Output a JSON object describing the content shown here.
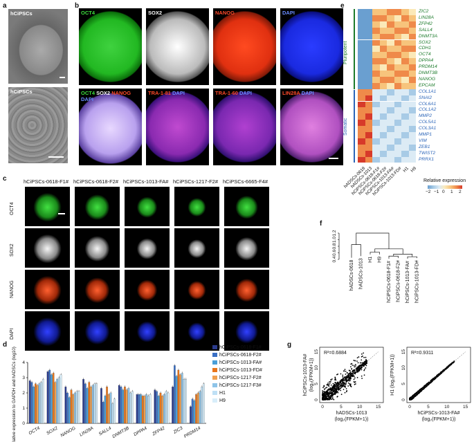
{
  "panels": {
    "a": "a",
    "b": "b",
    "c": "c",
    "d": "d",
    "e": "e",
    "f": "f",
    "g": "g"
  },
  "a": {
    "top_label": "hCiPSCs",
    "bottom_label": "hCiPSCs"
  },
  "b": {
    "row1": [
      {
        "label": "OCT4",
        "color": "#3ddc3d"
      },
      {
        "label": "SOX2",
        "color": "#ffffff"
      },
      {
        "label": "NANOG",
        "color": "#ff4a2a"
      },
      {
        "label": "DAPI",
        "color": "#6a8cff"
      }
    ],
    "row2": [
      {
        "parts": [
          {
            "t": "OCT4 ",
            "c": "#3ddc3d"
          },
          {
            "t": "SOX2 ",
            "c": "#ffffff"
          },
          {
            "t": "NANOG",
            "c": "#ff4a2a"
          }
        ],
        "sub": [
          {
            "t": "DAPI",
            "c": "#6a8cff"
          }
        ]
      },
      {
        "parts": [
          {
            "t": "TRA-1-81 ",
            "c": "#ff4a2a"
          },
          {
            "t": "DAPI",
            "c": "#6a8cff"
          }
        ]
      },
      {
        "parts": [
          {
            "t": "TRA-1-60 ",
            "c": "#ff4a2a"
          },
          {
            "t": "DAPI",
            "c": "#6a8cff"
          }
        ]
      },
      {
        "parts": [
          {
            "t": "LIN28A ",
            "c": "#ff4a2a"
          },
          {
            "t": "DAPI",
            "c": "#6a8cff"
          }
        ]
      }
    ]
  },
  "c": {
    "columns": [
      "hCiPSCs-0618-F1#",
      "hCiPSCs-0618-F2#",
      "hCiPSCs-1013-FA#",
      "hCiPSCs-1217-F2#",
      "hCiPSCs-6665-F4#"
    ],
    "rows": [
      "OCT4",
      "SOX2",
      "NANOG",
      "DAPI"
    ]
  },
  "e": {
    "pluripotent_label": "Pluripotent",
    "somatic_label": "Somatic",
    "pluripotent_genes": [
      "ZIC2",
      "LIN28A",
      "ZFP42",
      "SALL4",
      "DNMT3A",
      "SOX2",
      "CDH1",
      "OCT4",
      "DPPA4",
      "PRDM14",
      "DNMT3B",
      "NANOG",
      "EPCAM"
    ],
    "somatic_genes": [
      "COL1A1",
      "SNAI2",
      "COL6A1",
      "COL1A2",
      "MMP2",
      "COL5A1",
      "COL3A1",
      "MMP1",
      "VIM",
      "ZEB1",
      "TWIST2",
      "PRRX1"
    ],
    "samples": [
      "hADSCs-0618",
      "hADSCs-1013",
      "hCiPSCs-0618-F1#",
      "hCiPSCs-0618-F2#",
      "hCiPSCs-1013-FA#",
      "hCiPSCs-1013-FD#",
      "H1",
      "H9"
    ],
    "legend_title": "Relative expression",
    "legend_ticks": [
      "−2",
      "−1",
      "0",
      "1",
      "2"
    ]
  },
  "f": {
    "y_ticks": [
      "0.4",
      "0.6",
      "0.8",
      "1.0",
      "1.2"
    ],
    "leaves": [
      "hADSCs-0618",
      "hADSCs-1013",
      "H1",
      "H9",
      "hCiPSCs-0618-F1#",
      "hCiPSCs-0618-F2#",
      "hCiPSCs-1013-FA#",
      "hCiPSCs-1013-FD#"
    ]
  },
  "g": {
    "left": {
      "r2": "R²=0.6884",
      "xlabel1": "hADSCs-1013",
      "xlabel2": "(log₂(FPKM+1))",
      "ylabel1": "hCiPSCs-1013-FA#",
      "ylabel2": "(log₂(FPKM+1))",
      "ticks": [
        "0",
        "5",
        "10",
        "15"
      ]
    },
    "right": {
      "r2": "R²=0.9311",
      "xlabel1": "hCiPSCs-1013-FA#",
      "xlabel2": "(log₂(FPKM+1))",
      "ylabel1": "H1 (log₂(FPKM+1))",
      "ticks": [
        "0",
        "5",
        "10",
        "15"
      ]
    }
  },
  "chart_data": {
    "type": "bar",
    "ylabel": "Relative expression to GAPDH and hADSCs (log10)",
    "ylim": [
      0,
      4
    ],
    "yticks": [
      "0",
      "1",
      "2",
      "3",
      "4"
    ],
    "categories": [
      "OCT4",
      "SOX2",
      "NANOG",
      "LIN28A",
      "SALL4",
      "DNMT3B",
      "DPPA4",
      "ZFP42",
      "ZIC3",
      "PRDM14"
    ],
    "series": [
      {
        "name": "hCiPSCs-0618-F1#",
        "color": "#2a3a8c",
        "values": [
          2.8,
          3.4,
          2.4,
          2.9,
          2.3,
          2.5,
          1.9,
          2.2,
          2.4,
          1.1
        ]
      },
      {
        "name": "hCiPSCs-0618-F2#",
        "color": "#3a6fc4",
        "values": [
          2.7,
          3.5,
          2.0,
          2.6,
          1.4,
          2.4,
          1.9,
          2.1,
          3.8,
          1.6
        ]
      },
      {
        "name": "hCiPSCs-1013-FA#",
        "color": "#4a9fd8",
        "values": [
          2.4,
          3.2,
          1.7,
          2.3,
          1.8,
          2.2,
          1.9,
          1.8,
          3.1,
          1.5
        ]
      },
      {
        "name": "hCiPSCs-1013-FD#",
        "color": "#e8751a",
        "values": [
          2.6,
          3.3,
          2.2,
          2.7,
          2.4,
          2.4,
          1.8,
          2.0,
          3.5,
          1.9
        ]
      },
      {
        "name": "hCiPSCs-1217-F2#",
        "color": "#f0a050",
        "values": [
          2.5,
          2.7,
          1.9,
          2.4,
          1.9,
          2.2,
          1.8,
          1.8,
          3.2,
          2.0
        ]
      },
      {
        "name": "hCiPSCs-1217-F3#",
        "color": "#8ec4e8",
        "values": [
          2.6,
          2.9,
          2.0,
          2.5,
          2.0,
          2.3,
          1.9,
          1.9,
          3.3,
          2.1
        ]
      },
      {
        "name": "H1",
        "color": "#bfe0f5",
        "values": [
          2.7,
          3.0,
          2.1,
          2.6,
          1.3,
          2.0,
          1.8,
          2.1,
          2.9,
          2.4
        ]
      },
      {
        "name": "H9",
        "color": "#d8eefa",
        "values": [
          2.9,
          3.2,
          2.1,
          2.6,
          1.6,
          2.1,
          1.9,
          2.0,
          2.9,
          2.6
        ]
      }
    ]
  }
}
